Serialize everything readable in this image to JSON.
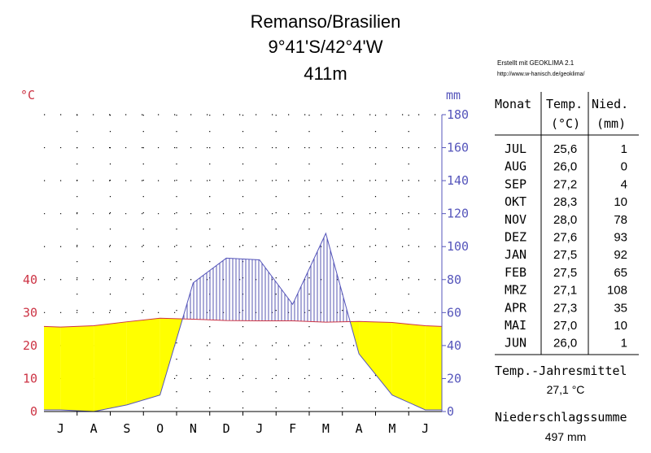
{
  "header": {
    "title": "Remanso/Brasilien",
    "coords": "9°41'S/42°4'W",
    "elevation": "411m"
  },
  "credit": {
    "line1": "Erstellt mit GEOKLIMA 2.1",
    "line2": "http://www.w-hanisch.de/geoklima/"
  },
  "chart_data": {
    "type": "climate-diagram",
    "categories": [
      "J",
      "A",
      "S",
      "O",
      "N",
      "D",
      "J",
      "F",
      "M",
      "A",
      "M",
      "J"
    ],
    "series": [
      {
        "name": "Temp.",
        "unit": "°C",
        "values": [
          25.6,
          26.0,
          27.2,
          28.3,
          28.0,
          27.6,
          27.5,
          27.5,
          27.1,
          27.3,
          27.0,
          26.0
        ]
      },
      {
        "name": "Nied.",
        "unit": "mm",
        "values": [
          1,
          0,
          4,
          10,
          78,
          93,
          92,
          65,
          108,
          35,
          10,
          1
        ]
      }
    ],
    "left_axis": {
      "label": "°C",
      "ticks": [
        "0",
        "10",
        "20",
        "30",
        "40"
      ],
      "range": [
        0,
        90
      ]
    },
    "right_axis": {
      "label": "mm",
      "ticks": [
        "0",
        "20",
        "40",
        "60",
        "80",
        "100",
        "120",
        "140",
        "160",
        "180"
      ],
      "range": [
        0,
        180
      ]
    },
    "grid": "dotted",
    "colors": {
      "temperature_axis": "#cc3344",
      "precip_axis": "#5555bb",
      "arid": "#ffff00",
      "humid_hatch": "#4444aa",
      "temp_line": "#cc3344",
      "precip_line": "#5555bb"
    }
  },
  "table": {
    "headers": {
      "month": "Monat",
      "temp": "Temp.",
      "temp_unit": "(°C)",
      "precip": "Nied.",
      "precip_unit": "(mm)"
    },
    "rows": [
      {
        "month": "JUL",
        "temp": "25,6",
        "precip": "1"
      },
      {
        "month": "AUG",
        "temp": "26,0",
        "precip": "0"
      },
      {
        "month": "SEP",
        "temp": "27,2",
        "precip": "4"
      },
      {
        "month": "OKT",
        "temp": "28,3",
        "precip": "10"
      },
      {
        "month": "NOV",
        "temp": "28,0",
        "precip": "78"
      },
      {
        "month": "DEZ",
        "temp": "27,6",
        "precip": "93"
      },
      {
        "month": "JAN",
        "temp": "27,5",
        "precip": "92"
      },
      {
        "month": "FEB",
        "temp": "27,5",
        "precip": "65"
      },
      {
        "month": "MRZ",
        "temp": "27,1",
        "precip": "108"
      },
      {
        "month": "APR",
        "temp": "27,3",
        "precip": "35"
      },
      {
        "month": "MAI",
        "temp": "27,0",
        "precip": "10"
      },
      {
        "month": "JUN",
        "temp": "26,0",
        "precip": "1"
      }
    ]
  },
  "summary": {
    "temp_label": "Temp.-Jahresmittel",
    "temp_value": "27,1 °C",
    "precip_label": "Niederschlagssumme",
    "precip_value": "497 mm"
  }
}
